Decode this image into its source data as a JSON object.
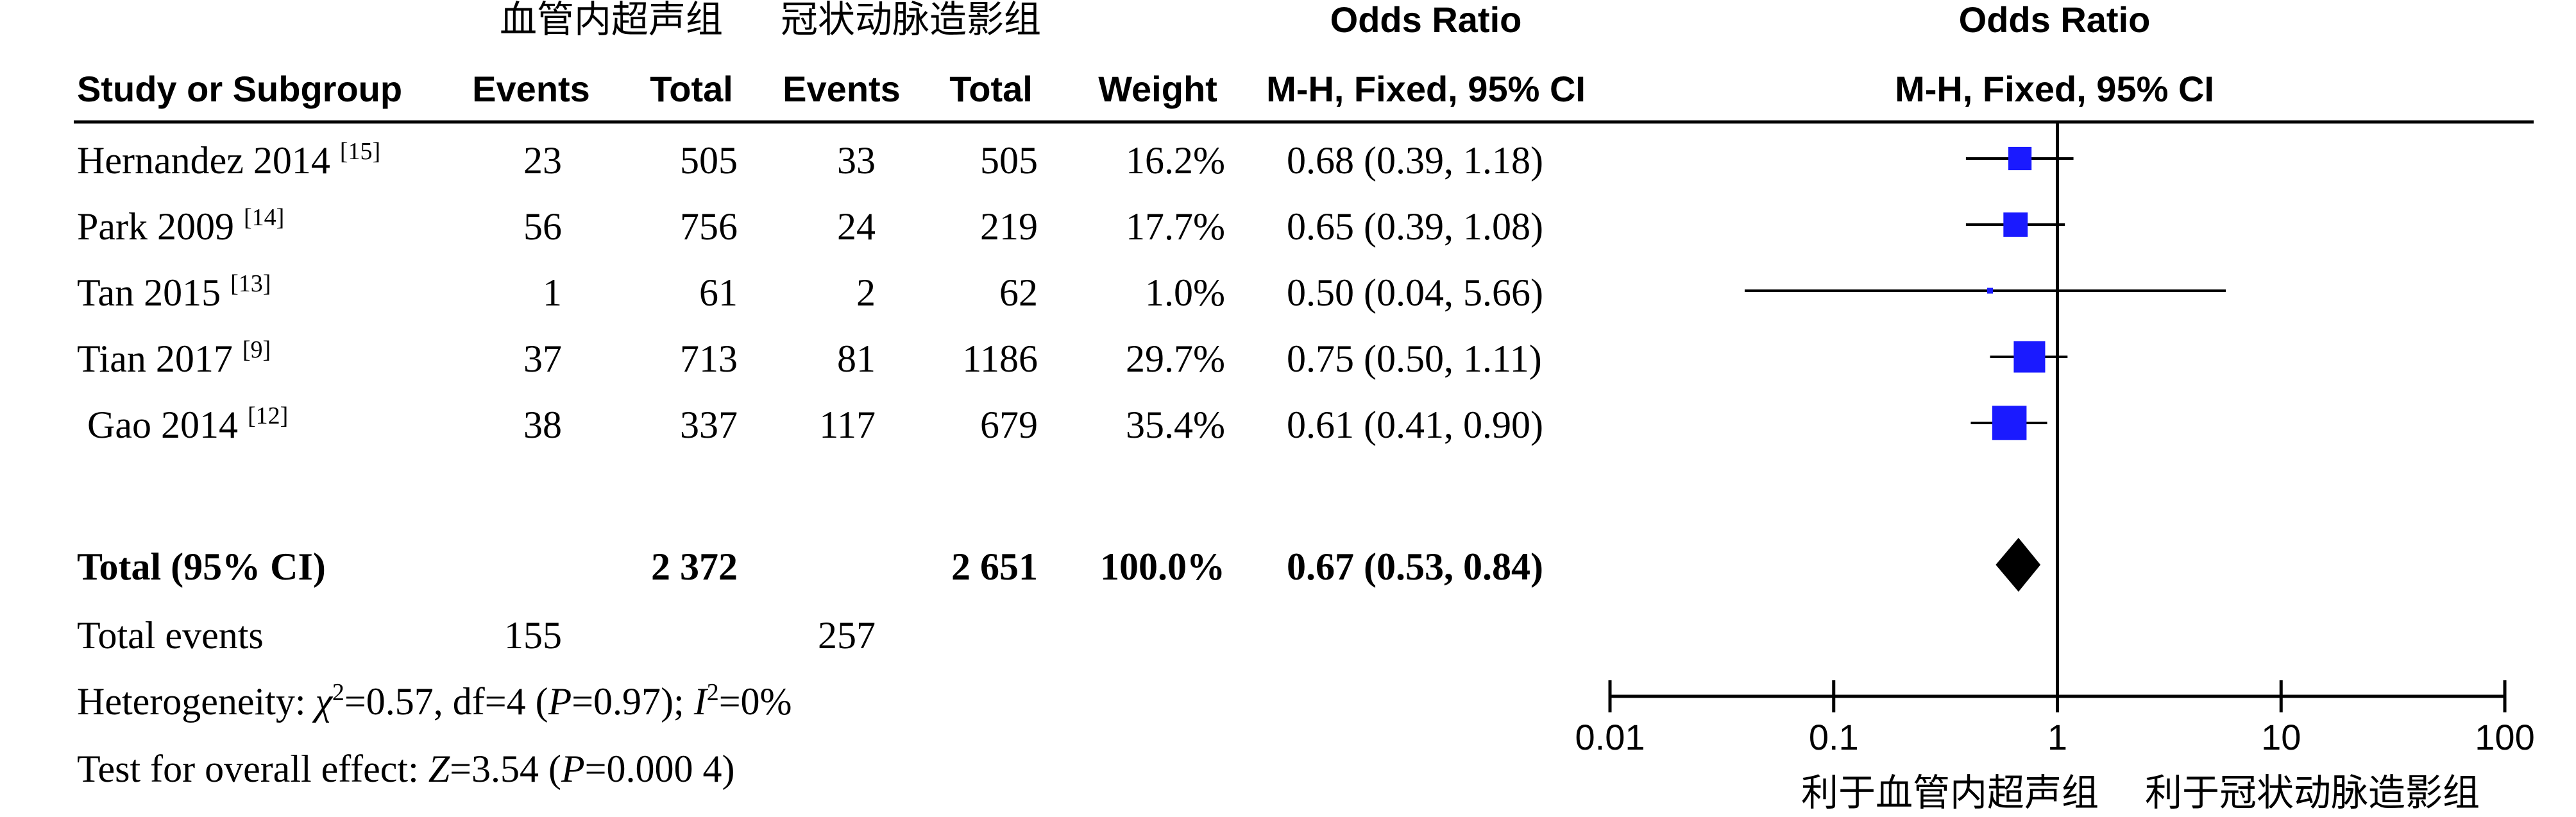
{
  "header": {
    "group1": "血管内超声组",
    "group2": "冠状动脉造影组",
    "or_label": "Odds Ratio",
    "or_plot_label": "Odds Ratio",
    "col_study": "Study or Subgroup",
    "col_events1": "Events",
    "col_total1": "Total",
    "col_events2": "Events",
    "col_total2": "Total",
    "col_weight": "Weight",
    "col_method": "M-H, Fixed, 95% CI",
    "plot_method": "M-H, Fixed, 95% CI"
  },
  "footer": {
    "total_label": "Total (95% CI)",
    "total_n1": "2 372",
    "total_n2": "2 651",
    "total_weight": "100.0%",
    "total_or_text": "0.67 (0.53, 0.84)",
    "events_label": "Total events",
    "events1": "155",
    "events2": "257",
    "het_prefix": "Heterogeneity: ",
    "het_chi": "χ",
    "het_sup": "2",
    "het_mid": "=0.57, df=4 (",
    "het_p": "P",
    "het_p_val": "=0.97); ",
    "het_i": "I",
    "het_i_sup": "2",
    "het_i_val": "=0%",
    "test_prefix": "Test for overall effect: ",
    "test_z": "Z",
    "test_z_val": "=3.54 (",
    "test_p": "P",
    "test_p_val": "=0.000 4)"
  },
  "chart_data": {
    "type": "forest",
    "x_scale": "log",
    "xlim": [
      0.01,
      100
    ],
    "x_ticks": [
      "0.01",
      "0.1",
      "1",
      "10",
      "100"
    ],
    "favours_left": "利于血管内超声组",
    "favours_right": "利于冠状动脉造影组",
    "studies": [
      {
        "name": "Hernandez 2014",
        "ref": "[15]",
        "events1": "23",
        "total1": "505",
        "events2": "33",
        "total2": "505",
        "weight": "16.2%",
        "or_text": "0.68 (0.39, 1.18)",
        "or": 0.68,
        "lo": 0.39,
        "hi": 1.18,
        "w": 16.2
      },
      {
        "name": "Park 2009",
        "ref": "[14]",
        "events1": "56",
        "total1": "756",
        "events2": "24",
        "total2": "219",
        "weight": "17.7%",
        "or_text": "0.65 (0.39, 1.08)",
        "or": 0.65,
        "lo": 0.39,
        "hi": 1.08,
        "w": 17.7
      },
      {
        "name": "Tan 2015",
        "ref": "[13]",
        "events1": "1",
        "total1": "61",
        "events2": "2",
        "total2": "62",
        "weight": "1.0%",
        "or_text": "0.50 (0.04, 5.66)",
        "or": 0.5,
        "lo": 0.04,
        "hi": 5.66,
        "w": 1.0
      },
      {
        "name": "Tian 2017",
        "ref": "[9]",
        "events1": "37",
        "total1": "713",
        "events2": "81",
        "total2": "1186",
        "weight": "29.7%",
        "or_text": "0.75 (0.50, 1.11)",
        "or": 0.75,
        "lo": 0.5,
        "hi": 1.11,
        "w": 29.7
      },
      {
        "name": "Gao 2014",
        "ref": "[12]",
        "events1": "38",
        "total1": "337",
        "events2": "117",
        "total2": "679",
        "weight": "35.4%",
        "or_text": "0.61 (0.41, 0.90)",
        "or": 0.61,
        "lo": 0.41,
        "hi": 0.9,
        "w": 35.4
      }
    ],
    "total": {
      "or": 0.67,
      "lo": 0.53,
      "hi": 0.84
    },
    "colors": {
      "square": "#1a1aff",
      "diamond": "#000000",
      "line": "#000000"
    }
  }
}
